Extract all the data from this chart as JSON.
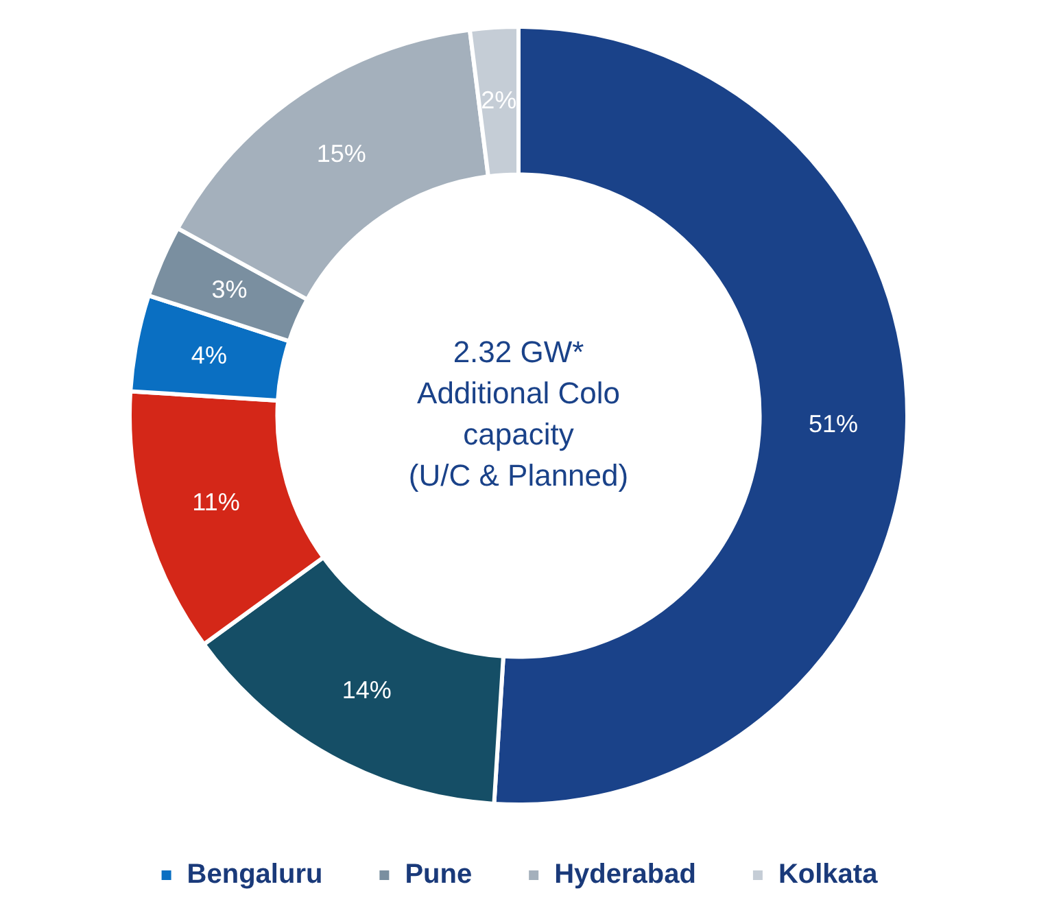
{
  "chart_data": {
    "type": "donut",
    "categories": [
      null,
      null,
      null,
      "Bengaluru",
      "Pune",
      "Hyderabad",
      "Kolkata"
    ],
    "values": [
      51,
      14,
      11,
      4,
      3,
      15,
      2
    ],
    "colors": [
      "#1a4289",
      "#154e66",
      "#d42718",
      "#0a6fc2",
      "#7a8fa0",
      "#a4b0bc",
      "#c5cdd6"
    ],
    "value_labels": [
      "51%",
      "14%",
      "11%",
      "4%",
      "3%",
      "15%",
      "2%"
    ],
    "legend": "bottom",
    "annotations": [
      "2.32 GW*\nAdditional Colo\ncapacity\n(U/C & Planned)"
    ]
  }
}
